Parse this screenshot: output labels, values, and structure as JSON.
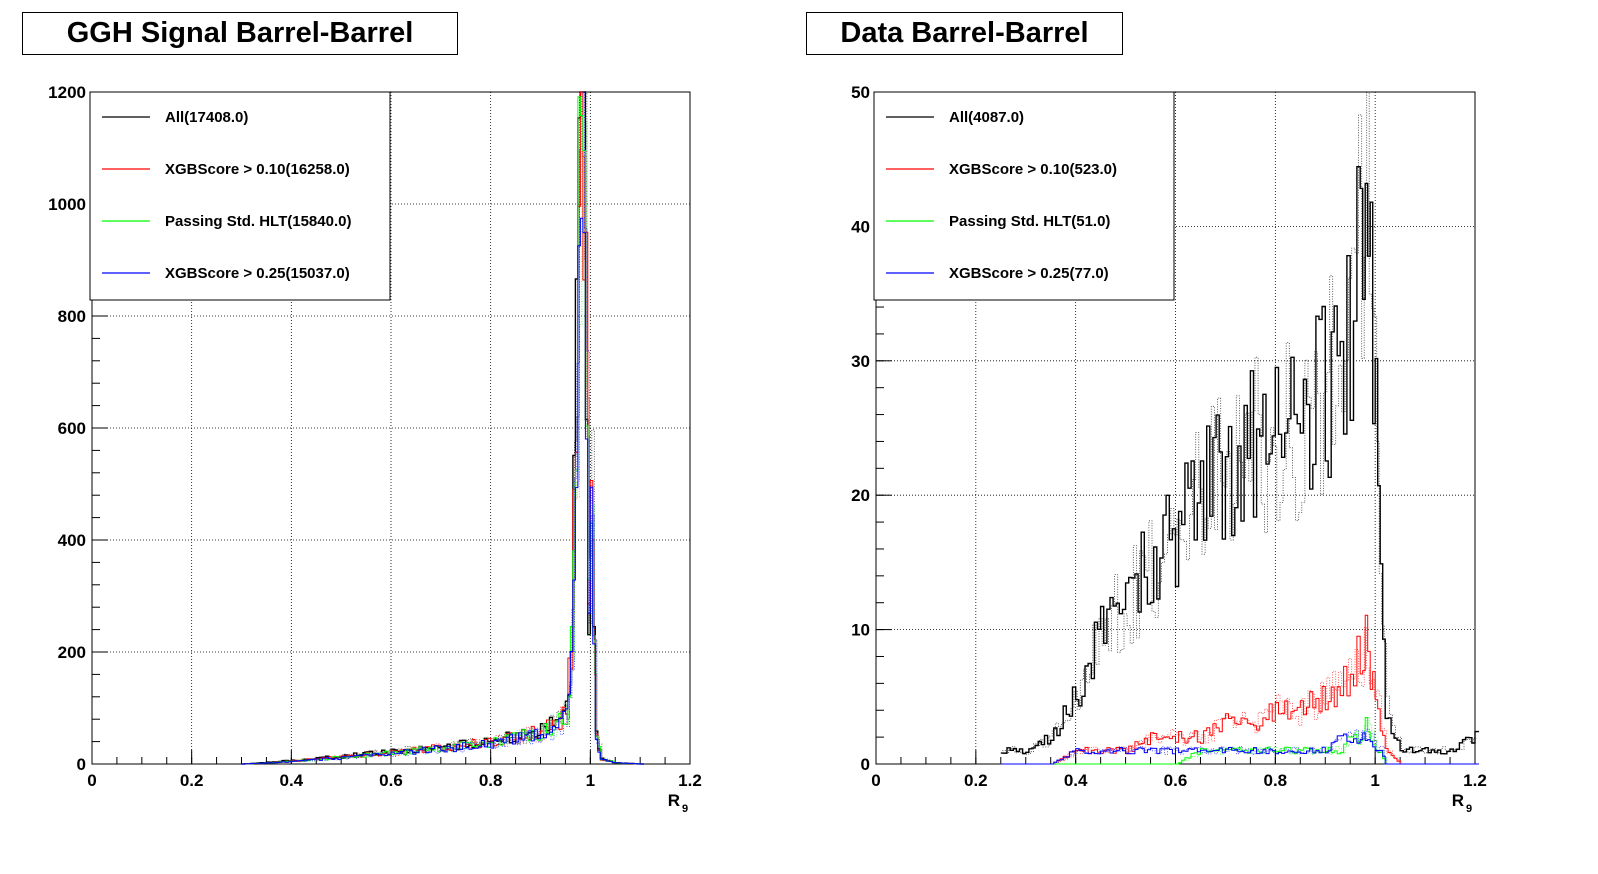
{
  "colors": {
    "all": "#000000",
    "xgb010": "#ff0000",
    "hlt": "#00ff00",
    "xgb025": "#0000ff"
  },
  "chart_data": [
    {
      "type": "line",
      "subtype": "histogram",
      "title": "GGH Signal Barrel-Barrel",
      "xlabel": "R",
      "xlabel_sub": "9",
      "ylabel": "",
      "xlim": [
        0,
        1.2
      ],
      "ylim": [
        0,
        1200
      ],
      "xticks": [
        "0",
        "0.2",
        "0.4",
        "0.6",
        "0.8",
        "1",
        "1.2"
      ],
      "yticks": [
        "0",
        "200",
        "400",
        "600",
        "800",
        "1000",
        "1200"
      ],
      "grid": true,
      "legend_position": "top-left",
      "x": [
        0.3,
        0.35,
        0.4,
        0.45,
        0.5,
        0.55,
        0.6,
        0.65,
        0.7,
        0.75,
        0.8,
        0.85,
        0.9,
        0.93,
        0.95,
        0.96,
        0.97,
        0.975,
        0.98,
        0.985,
        0.99,
        0.995,
        1.0,
        1.005,
        1.01,
        1.02,
        1.05,
        1.1
      ],
      "series": [
        {
          "name": "All(17408.0)",
          "color_key": "all",
          "values": [
            0,
            3,
            6,
            10,
            14,
            18,
            22,
            26,
            30,
            35,
            40,
            50,
            60,
            75,
            100,
            220,
            700,
            1050,
            1205,
            1100,
            800,
            300,
            500,
            200,
            50,
            10,
            2,
            0
          ]
        },
        {
          "name": "XGBScore > 0.10(16258.0)",
          "color_key": "xgb010",
          "values": [
            0,
            2,
            5,
            9,
            13,
            17,
            21,
            25,
            29,
            34,
            39,
            48,
            58,
            72,
            95,
            210,
            670,
            1000,
            1120,
            1050,
            760,
            290,
            470,
            190,
            45,
            9,
            2,
            0
          ]
        },
        {
          "name": "Passing Std. HLT(15840.0)",
          "color_key": "hlt",
          "values": [
            0,
            2,
            5,
            8,
            12,
            16,
            20,
            24,
            28,
            33,
            38,
            47,
            57,
            70,
            92,
            205,
            660,
            990,
            1110,
            1040,
            750,
            285,
            460,
            185,
            44,
            9,
            2,
            0
          ]
        },
        {
          "name": "XGBScore > 0.25(15037.0)",
          "color_key": "xgb025",
          "values": [
            0,
            2,
            4,
            8,
            11,
            15,
            19,
            23,
            27,
            31,
            36,
            45,
            54,
            67,
            88,
            195,
            640,
            960,
            1080,
            1010,
            720,
            275,
            440,
            175,
            42,
            8,
            2,
            0
          ]
        }
      ]
    },
    {
      "type": "line",
      "subtype": "histogram",
      "title": "Data Barrel-Barrel",
      "xlabel": "R",
      "xlabel_sub": "9",
      "ylabel": "",
      "xlim": [
        0,
        1.2
      ],
      "ylim": [
        0,
        50
      ],
      "xticks": [
        "0",
        "0.2",
        "0.4",
        "0.6",
        "0.8",
        "1",
        "1.2"
      ],
      "yticks": [
        "0",
        "10",
        "20",
        "30",
        "40",
        "50"
      ],
      "grid": true,
      "legend_position": "top-left",
      "x": [
        0.25,
        0.3,
        0.35,
        0.4,
        0.45,
        0.5,
        0.55,
        0.6,
        0.65,
        0.7,
        0.75,
        0.8,
        0.85,
        0.9,
        0.93,
        0.95,
        0.97,
        0.98,
        0.99,
        1.0,
        1.01,
        1.02,
        1.05,
        1.1,
        1.15,
        1.2
      ],
      "series": [
        {
          "name": "All(4087.0)",
          "color_key": "all",
          "values": [
            1,
            1,
            2,
            5,
            10,
            12,
            15,
            17,
            20,
            22,
            24,
            24,
            26,
            28,
            30,
            33,
            40,
            48,
            35,
            28,
            12,
            4,
            1,
            1,
            1,
            2
          ]
        },
        {
          "name": "XGBScore > 0.10(523.0)",
          "color_key": "xgb010",
          "values": [
            0,
            0,
            0,
            1,
            1,
            1,
            2,
            2,
            2,
            3,
            3,
            4,
            4,
            5,
            6,
            7,
            8,
            9,
            6,
            5,
            3,
            1,
            0,
            0,
            0,
            0
          ]
        },
        {
          "name": "Passing Std. HLT(51.0)",
          "color_key": "hlt",
          "values": [
            0,
            0,
            0,
            0,
            0,
            0,
            0,
            0,
            1,
            1,
            1,
            1,
            1,
            1,
            1,
            2,
            2,
            3,
            2,
            1,
            1,
            0,
            0,
            0,
            0,
            0
          ]
        },
        {
          "name": "XGBScore > 0.25(77.0)",
          "color_key": "xgb025",
          "values": [
            0,
            0,
            0,
            1,
            1,
            1,
            1,
            1,
            1,
            1,
            1,
            1,
            1,
            1,
            2,
            2,
            2,
            2,
            2,
            1,
            1,
            0,
            0,
            0,
            0,
            0
          ]
        }
      ]
    }
  ]
}
